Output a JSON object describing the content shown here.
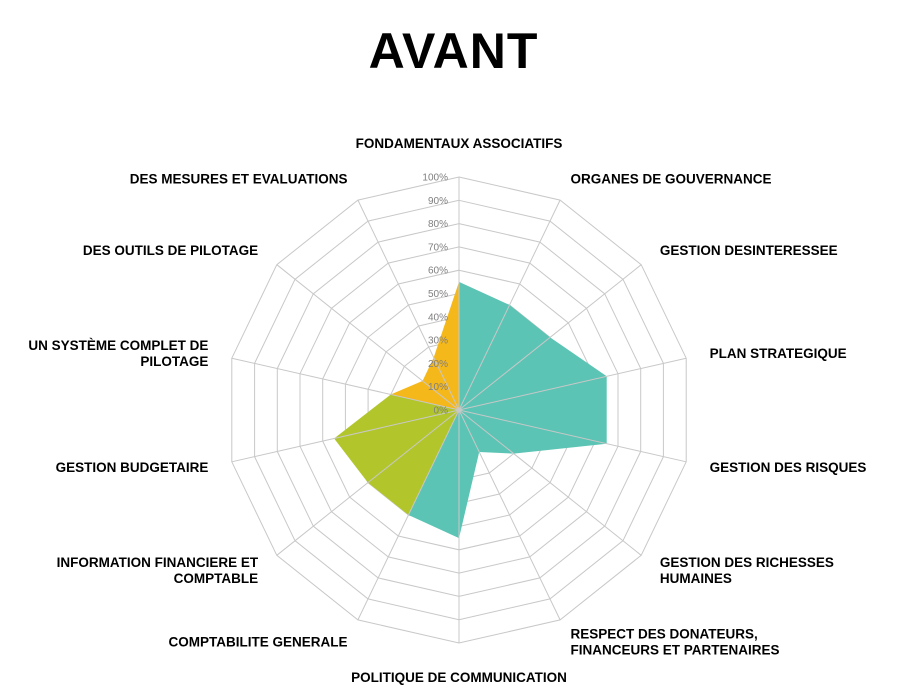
{
  "chart_data": {
    "type": "radar",
    "title": "AVANT",
    "tick_labels": [
      "0%",
      "10%",
      "20%",
      "30%",
      "40%",
      "50%",
      "60%",
      "70%",
      "80%",
      "90%",
      "100%"
    ],
    "range": [
      0,
      100
    ],
    "grid": true,
    "legend": "none",
    "categories": [
      "FONDAMENTAUX ASSOCIATIFS",
      "ORGANES DE GOUVERNANCE",
      "GESTION DESINTERESSEE",
      "PLAN STRATEGIQUE",
      "GESTION DES RISQUES",
      "GESTION DES RICHESSES HUMAINES",
      "RESPECT DES DONATEURS, FINANCEURS ET PARTENAIRES",
      "POLITIQUE DE COMMUNICATION",
      "COMPTABILITE GENERALE",
      "INFORMATION FINANCIERE ET COMPTABLE",
      "GESTION BUDGETAIRE",
      "UN SYSTÈME COMPLET DE PILOTAGE",
      "DES OUTILS DE PILOTAGE",
      "DES MESURES ET EVALUATIONS"
    ],
    "series": [
      {
        "color": "#5bc4b4",
        "values": {
          "FONDAMENTAUX ASSOCIATIFS": 55,
          "ORGANES DE GOUVERNANCE": 50,
          "GESTION DESINTERESSEE": 50,
          "PLAN STRATEGIQUE": 65,
          "GESTION DES RISQUES": 65,
          "GESTION DES RICHESSES HUMAINES": 30,
          "RESPECT DES DONATEURS, FINANCEURS ET PARTENAIRES": 20,
          "POLITIQUE DE COMMUNICATION": 55,
          "COMPTABILITE GENERALE": 50,
          "INFORMATION FINANCIERE ET COMPTABLE": 0,
          "GESTION BUDGETAIRE": 0,
          "UN SYSTÈME COMPLET DE PILOTAGE": 0,
          "DES OUTILS DE PILOTAGE": 0,
          "DES MESURES ET EVALUATIONS": 0
        }
      },
      {
        "color": "#b2c62c",
        "values": {
          "FONDAMENTAUX ASSOCIATIFS": 0,
          "ORGANES DE GOUVERNANCE": 0,
          "GESTION DESINTERESSEE": 0,
          "PLAN STRATEGIQUE": 0,
          "GESTION DES RISQUES": 0,
          "GESTION DES RICHESSES HUMAINES": 0,
          "RESPECT DES DONATEURS, FINANCEURS ET PARTENAIRES": 0,
          "POLITIQUE DE COMMUNICATION": 0,
          "COMPTABILITE GENERALE": 50,
          "INFORMATION FINANCIERE ET COMPTABLE": 50,
          "GESTION BUDGETAIRE": 55,
          "UN SYSTÈME COMPLET DE PILOTAGE": 30,
          "DES OUTILS DE PILOTAGE": 0,
          "DES MESURES ET EVALUATIONS": 0
        }
      },
      {
        "color": "#f5b81b",
        "values": {
          "FONDAMENTAUX ASSOCIATIFS": 55,
          "ORGANES DE GOUVERNANCE": 0,
          "GESTION DESINTERESSEE": 0,
          "PLAN STRATEGIQUE": 0,
          "GESTION DES RISQUES": 0,
          "GESTION DES RICHESSES HUMAINES": 0,
          "RESPECT DES DONATEURS, FINANCEURS ET PARTENAIRES": 0,
          "POLITIQUE DE COMMUNICATION": 0,
          "COMPTABILITE GENERALE": 0,
          "INFORMATION FINANCIERE ET COMPTABLE": 0,
          "GESTION BUDGETAIRE": 0,
          "UN SYSTÈME COMPLET DE PILOTAGE": 30,
          "DES OUTILS DE PILOTAGE": 20,
          "DES MESURES ET EVALUATIONS": 25
        }
      }
    ],
    "grid_color": "#c8c8c8"
  }
}
